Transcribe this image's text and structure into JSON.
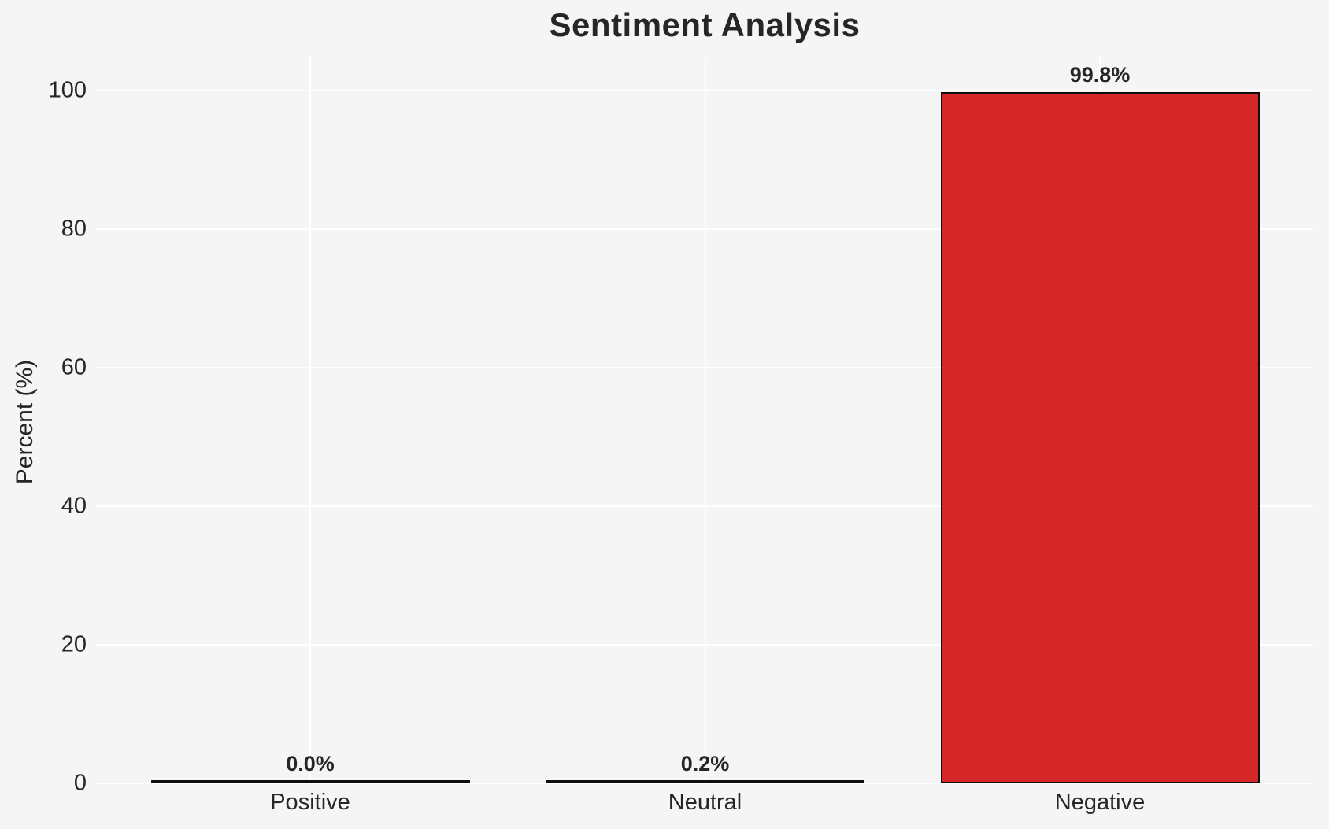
{
  "chart_data": {
    "type": "bar",
    "title": "Sentiment Analysis",
    "xlabel": "",
    "ylabel": "Percent (%)",
    "categories": [
      "Positive",
      "Neutral",
      "Negative"
    ],
    "values": [
      0.0,
      0.2,
      99.8
    ],
    "value_labels": [
      "0.0%",
      "0.2%",
      "99.8%"
    ],
    "yticks": [
      0,
      20,
      40,
      60,
      80,
      100
    ],
    "ylim": [
      0,
      104.8
    ],
    "grid": true,
    "legend": false,
    "colors": {
      "bar_fill": "#d62728",
      "bar_edge": "#0d0d0d",
      "background": "#f5f5f5",
      "gridline": "#ffffff",
      "text": "#262626"
    }
  }
}
